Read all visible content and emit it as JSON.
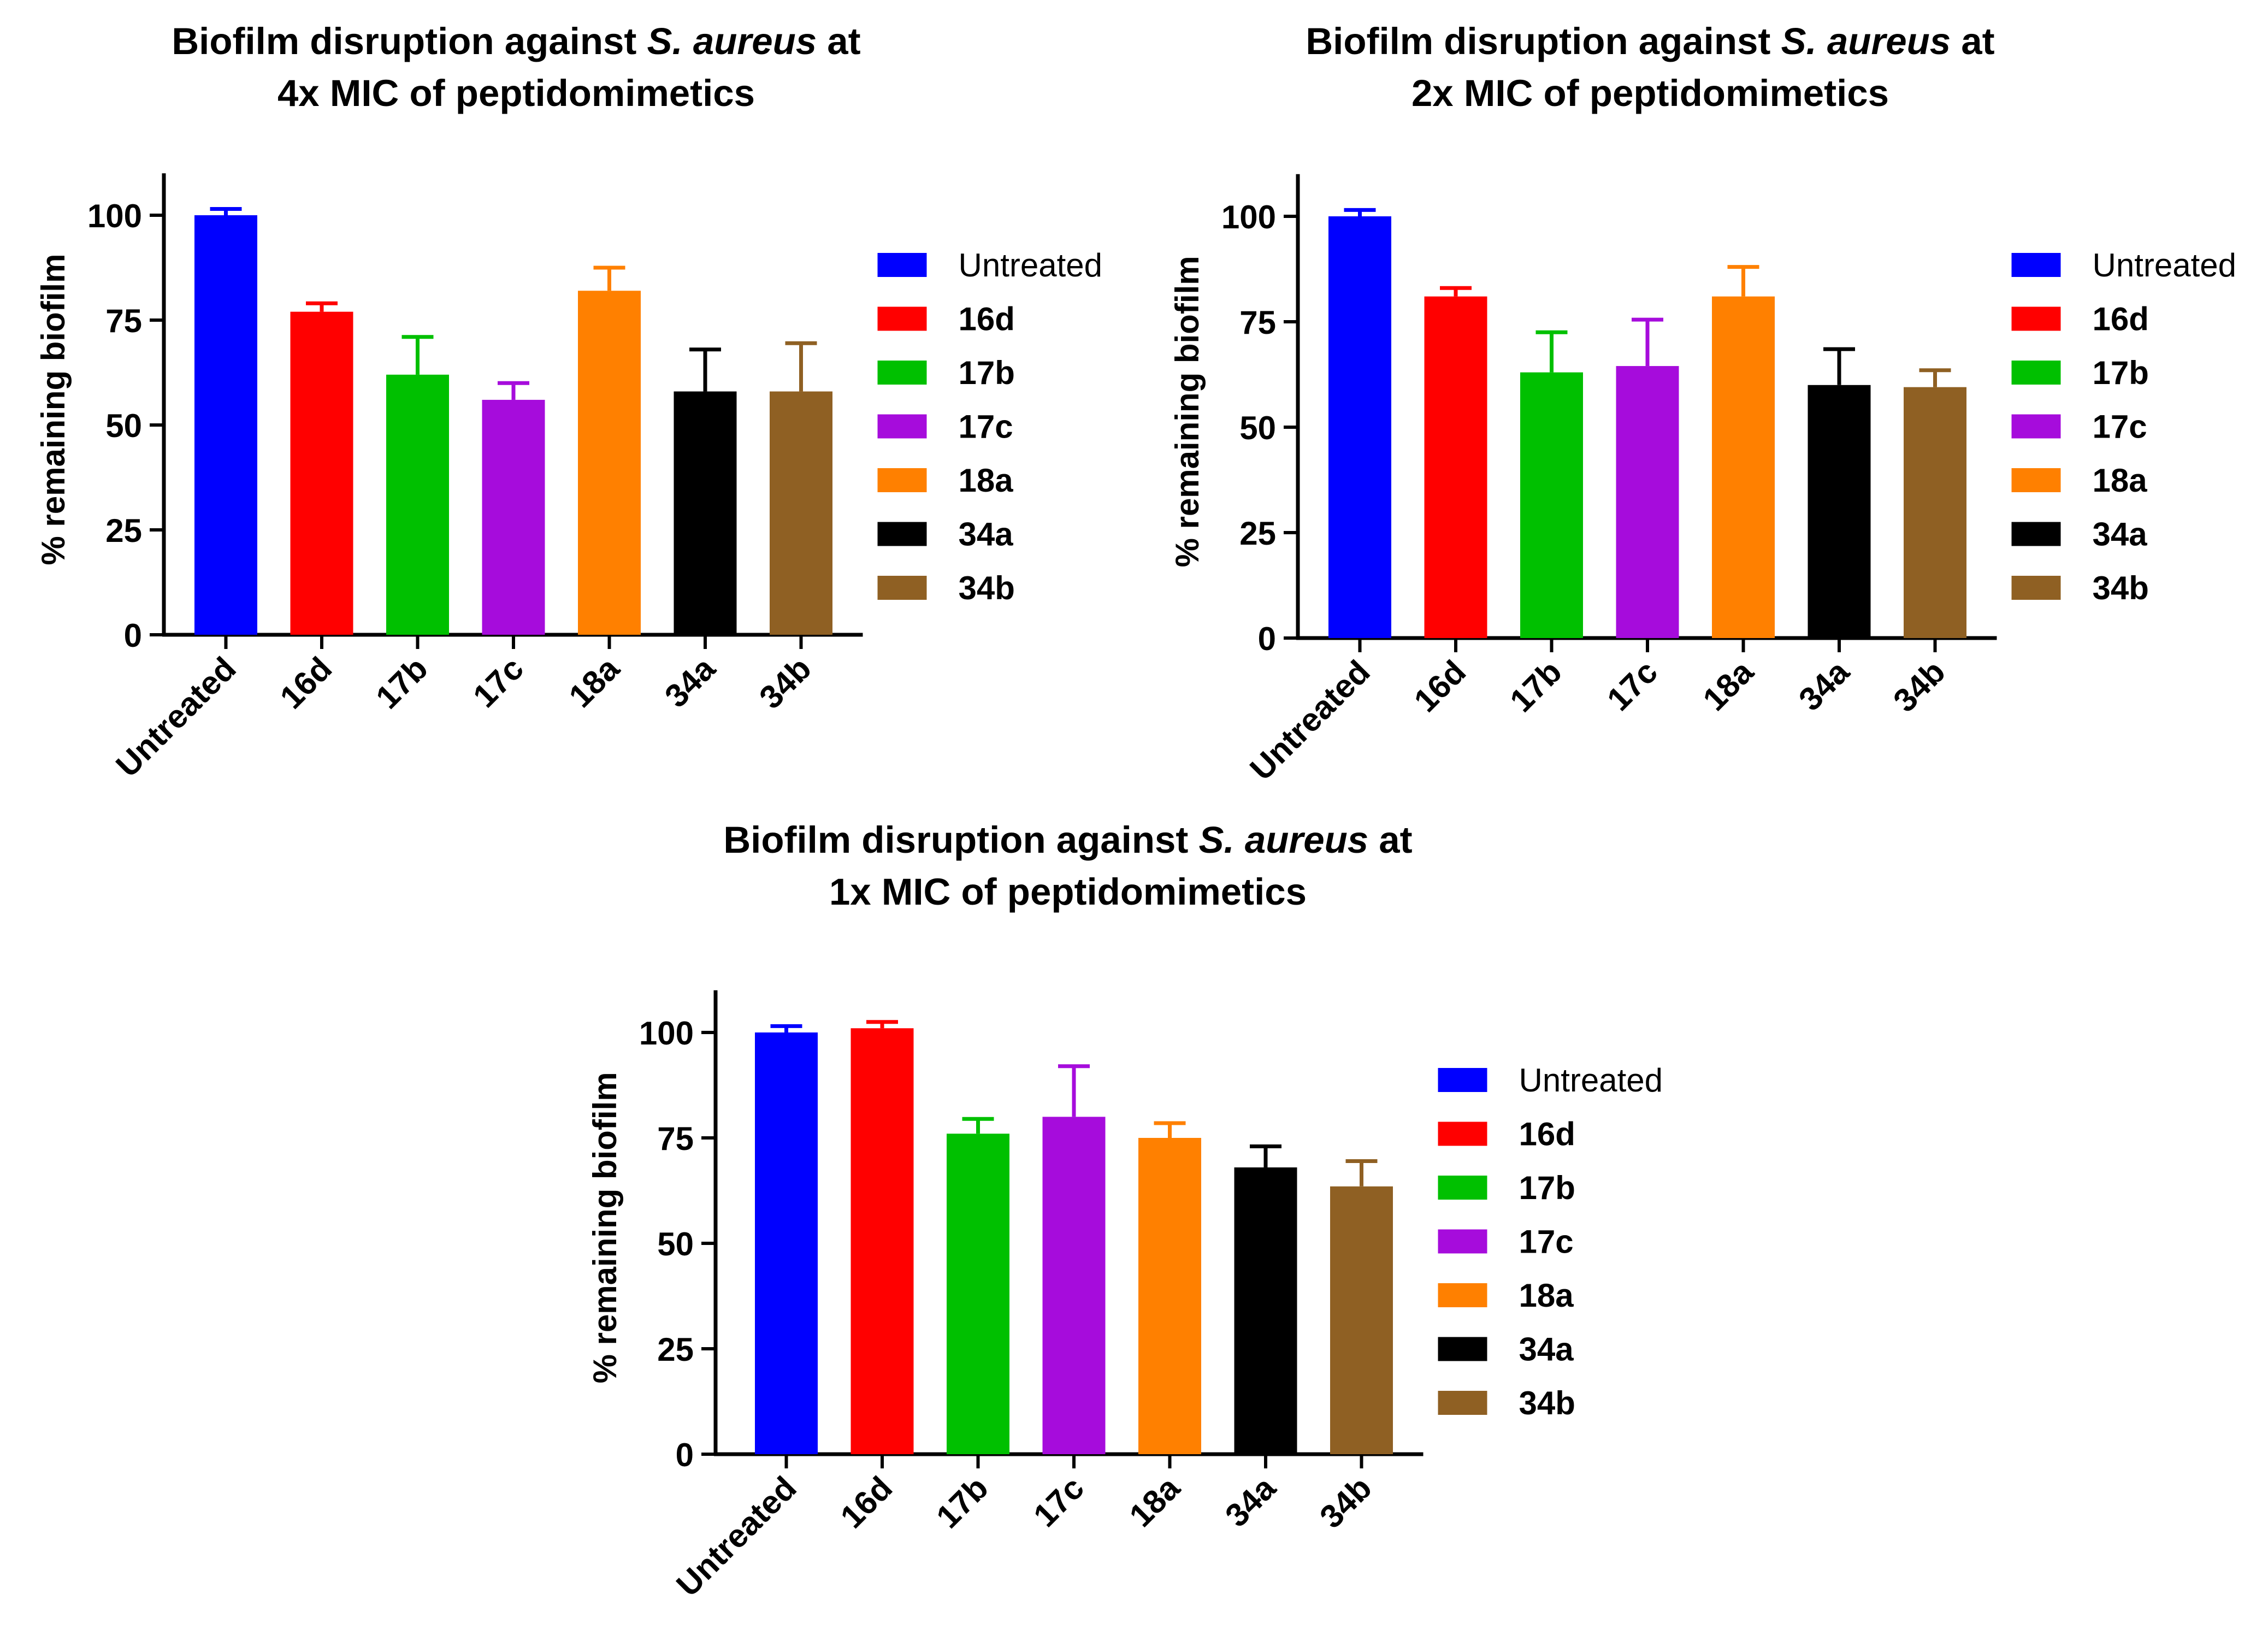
{
  "figure": {
    "legend_entries": [
      "Untreated",
      "16d",
      "17b",
      "17c",
      "18a",
      "34a",
      "34b"
    ]
  },
  "colors": {
    "Untreated": "#0000ff",
    "16d": "#ff0000",
    "17b": "#00c000",
    "17c": "#a60cdc",
    "18a": "#ff8000",
    "34a": "#000000",
    "34b": "#8f6023"
  },
  "chart_data": [
    {
      "id": "4x",
      "type": "bar",
      "title_line1_prefix": "Biofilm disruption against ",
      "title_line1_italic": "S. aureus",
      "title_line1_suffix": " at",
      "title_line2": "4x MIC of peptidomimetics",
      "ylabel": "% remaining biofilm",
      "xlabel": "",
      "ylim": [
        0,
        110
      ],
      "yticks": [
        0,
        25,
        50,
        75,
        100
      ],
      "categories": [
        "Untreated",
        "16d",
        "17b",
        "17c",
        "18a",
        "34a",
        "34b"
      ],
      "values": [
        100,
        77,
        62,
        56,
        82,
        58,
        58
      ],
      "errors": [
        1.5,
        2,
        9,
        4,
        5.5,
        10,
        11.5
      ],
      "legend": [
        "Untreated",
        "16d",
        "17b",
        "17c",
        "18a",
        "34a",
        "34b"
      ]
    },
    {
      "id": "2x",
      "type": "bar",
      "title_line1_prefix": "Biofilm disruption against ",
      "title_line1_italic": "S. aureus",
      "title_line1_suffix": " at",
      "title_line2": "2x MIC of peptidomimetics",
      "ylabel": "% remaining biofilm",
      "xlabel": "",
      "ylim": [
        0,
        110
      ],
      "yticks": [
        0,
        25,
        50,
        75,
        100
      ],
      "categories": [
        "Untreated",
        "16d",
        "17b",
        "17c",
        "18a",
        "34a",
        "34b"
      ],
      "values": [
        100,
        81,
        63,
        64.5,
        81,
        60,
        59.5
      ],
      "errors": [
        1.5,
        2,
        9.5,
        11,
        7,
        8.5,
        4
      ],
      "legend": [
        "Untreated",
        "16d",
        "17b",
        "17c",
        "18a",
        "34a",
        "34b"
      ]
    },
    {
      "id": "1x",
      "type": "bar",
      "title_line1_prefix": "Biofilm disruption against ",
      "title_line1_italic": "S. aureus",
      "title_line1_suffix": " at",
      "title_line2": "1x MIC of peptidomimetics",
      "ylabel": "% remaining biofilm",
      "xlabel": "",
      "ylim": [
        0,
        110
      ],
      "yticks": [
        0,
        25,
        50,
        75,
        100
      ],
      "categories": [
        "Untreated",
        "16d",
        "17b",
        "17c",
        "18a",
        "34a",
        "34b"
      ],
      "values": [
        100,
        101,
        76,
        80,
        75,
        68,
        63.5
      ],
      "errors": [
        1.5,
        1.5,
        3.5,
        12,
        3.5,
        5,
        6
      ],
      "legend": [
        "Untreated",
        "16d",
        "17b",
        "17c",
        "18a",
        "34a",
        "34b"
      ]
    }
  ]
}
